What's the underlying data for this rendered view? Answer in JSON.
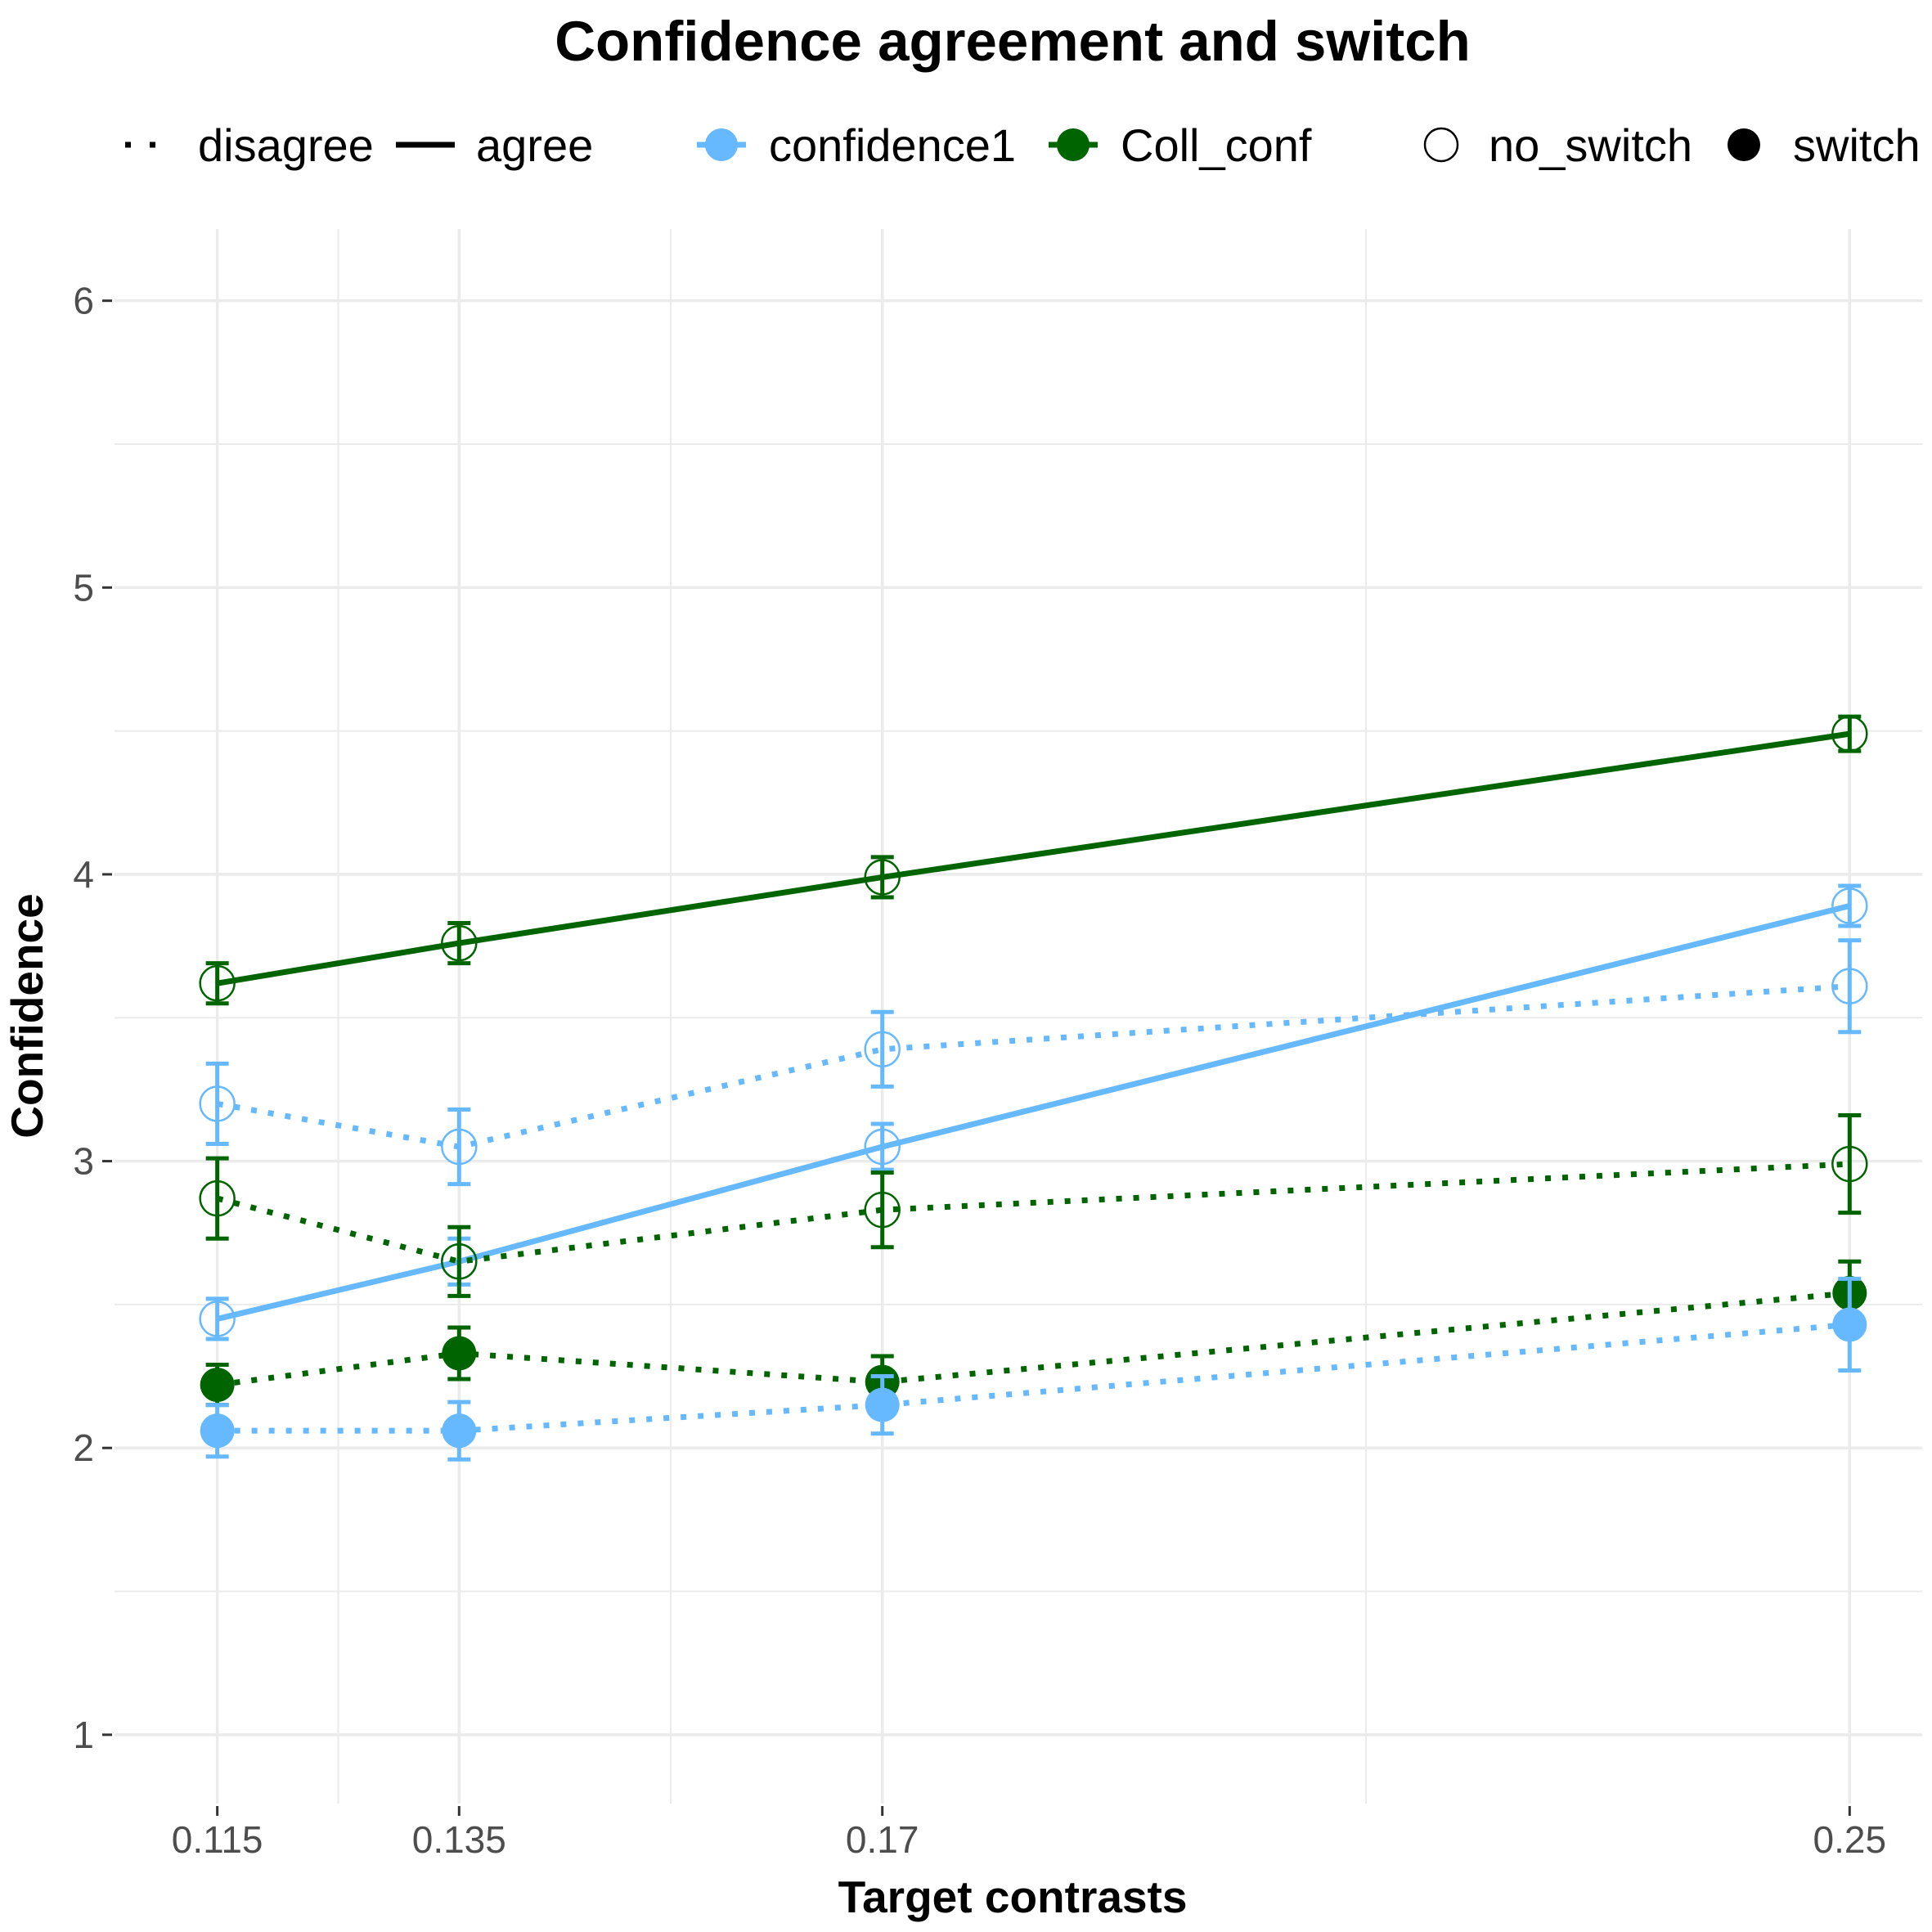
{
  "chart_data": {
    "type": "line",
    "title": "Confidence agreement and switch",
    "xlabel": "Target contrasts",
    "ylabel": "Confidence",
    "x": [
      0.115,
      0.135,
      0.17,
      0.25
    ],
    "x_tick_labels": [
      "0.115",
      "0.135",
      "0.17",
      "0.25"
    ],
    "y_ticks": [
      1,
      2,
      3,
      4,
      5,
      6
    ],
    "xlim": [
      0.1065,
      0.256
    ],
    "ylim": [
      0.76,
      6.25
    ],
    "grid": true,
    "legend_position": "top",
    "colors": {
      "confidence1": "#66b8ff",
      "Coll_conf": "#006400",
      "ink": "#000000",
      "grid": "#ebebeb"
    },
    "legend": {
      "linetype": [
        {
          "label": "disagree",
          "style": "dotted"
        },
        {
          "label": "agree",
          "style": "solid"
        }
      ],
      "measure": [
        {
          "label": "confidence1",
          "color": "#66b8ff"
        },
        {
          "label": "Coll_conf",
          "color": "#006400"
        }
      ],
      "switch": [
        {
          "label": "no_switch",
          "filled": false
        },
        {
          "label": "switch",
          "filled": true
        }
      ]
    },
    "series": [
      {
        "measure": "Coll_conf",
        "agreement": "agree",
        "switch": "no_switch",
        "color": "#006400",
        "linetype": "solid",
        "filled": false,
        "values": [
          3.62,
          3.76,
          3.99,
          4.49
        ],
        "errors": [
          0.07,
          0.07,
          0.07,
          0.06
        ]
      },
      {
        "measure": "confidence1",
        "agreement": "agree",
        "switch": "no_switch",
        "color": "#66b8ff",
        "linetype": "solid",
        "filled": false,
        "values": [
          2.45,
          2.65,
          3.05,
          3.89
        ],
        "errors": [
          0.07,
          0.08,
          0.08,
          0.07
        ]
      },
      {
        "measure": "confidence1",
        "agreement": "disagree",
        "switch": "no_switch",
        "color": "#66b8ff",
        "linetype": "dotted",
        "filled": false,
        "values": [
          3.2,
          3.05,
          3.39,
          3.61
        ],
        "errors": [
          0.14,
          0.13,
          0.13,
          0.16
        ]
      },
      {
        "measure": "Coll_conf",
        "agreement": "disagree",
        "switch": "no_switch",
        "color": "#006400",
        "linetype": "dotted",
        "filled": false,
        "values": [
          2.87,
          2.65,
          2.83,
          2.99
        ],
        "errors": [
          0.14,
          0.12,
          0.13,
          0.17
        ]
      },
      {
        "measure": "Coll_conf",
        "agreement": "disagree",
        "switch": "switch",
        "color": "#006400",
        "linetype": "dotted",
        "filled": true,
        "values": [
          2.22,
          2.33,
          2.23,
          2.54
        ],
        "errors": [
          0.07,
          0.09,
          0.09,
          0.11
        ]
      },
      {
        "measure": "confidence1",
        "agreement": "disagree",
        "switch": "switch",
        "color": "#66b8ff",
        "linetype": "dotted",
        "filled": true,
        "values": [
          2.06,
          2.06,
          2.15,
          2.43
        ],
        "errors": [
          0.09,
          0.1,
          0.1,
          0.16
        ]
      }
    ]
  }
}
